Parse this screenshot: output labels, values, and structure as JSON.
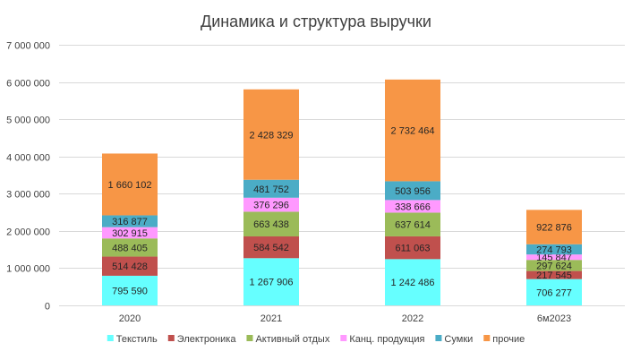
{
  "chart_data": {
    "type": "bar",
    "stacked": true,
    "title": "Динамика и структура выручки",
    "categories": [
      "2020",
      "2021",
      "2022",
      "6м2023"
    ],
    "ylim": [
      0,
      7000000
    ],
    "yticks": [
      0,
      1000000,
      2000000,
      3000000,
      4000000,
      5000000,
      6000000,
      7000000
    ],
    "ytick_labels": [
      "0",
      "1 000 000",
      "2 000 000",
      "3 000 000",
      "4 000 000",
      "5 000 000",
      "6 000 000",
      "7 000 000"
    ],
    "grid": true,
    "legend_position": "bottom",
    "series": [
      {
        "name": "Текстиль",
        "color": "#66FFFF",
        "values": [
          795590,
          1267906,
          1242486,
          706277
        ],
        "labels": [
          "795 590",
          "1 267 906",
          "1 242 486",
          "706 277"
        ]
      },
      {
        "name": "Электроника",
        "color": "#C0504D",
        "values": [
          514428,
          584542,
          611063,
          217545
        ],
        "labels": [
          "514 428",
          "584 542",
          "611 063",
          "217 545"
        ]
      },
      {
        "name": "Активный отдых",
        "color": "#9BBB59",
        "values": [
          488405,
          663438,
          637614,
          297624
        ],
        "labels": [
          "488 405",
          "663 438",
          "637 614",
          "297 624"
        ]
      },
      {
        "name": "Канц. продукция",
        "color": "#FF99FF",
        "values": [
          302915,
          376296,
          338666,
          145847
        ],
        "labels": [
          "302 915",
          "376 296",
          "338 666",
          "145 847"
        ]
      },
      {
        "name": "Сумки",
        "color": "#4BACC6",
        "values": [
          316877,
          481752,
          503956,
          274793
        ],
        "labels": [
          "316 877",
          "481 752",
          "503 956",
          "274 793"
        ]
      },
      {
        "name": "прочие",
        "color": "#F79646",
        "values": [
          1660102,
          2428329,
          2732464,
          922876
        ],
        "labels": [
          "1 660 102",
          "2 428 329",
          "2 732 464",
          "922 876"
        ]
      }
    ]
  }
}
